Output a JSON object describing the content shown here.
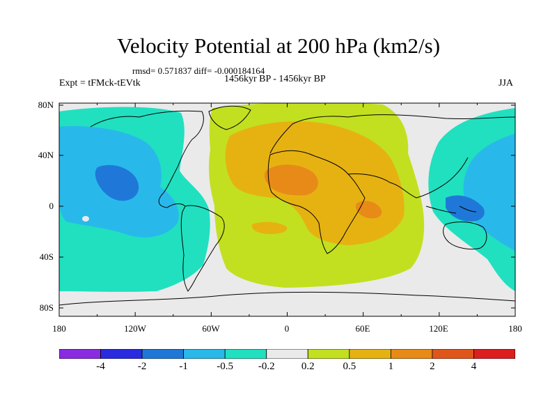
{
  "title": "Velocity Potential at 200 hPa (km2/s)",
  "stats_line": "rmsd= 0.571837 diff= -0.000184164",
  "period": "1456kyr BP - 1456kyr BP",
  "experiment": "Expt = tFMck-tEVtk",
  "season": "JJA",
  "lon_labels": [
    "180",
    "120W",
    "60W",
    "0",
    "60E",
    "120E",
    "180"
  ],
  "lat_labels": [
    "80N",
    "40N",
    "0",
    "40S",
    "80S"
  ],
  "colorbar": {
    "labels": [
      "-4",
      "-2",
      "-1",
      "-0.5",
      "-0.2",
      "0.2",
      "0.5",
      "1",
      "2",
      "4"
    ],
    "colors": [
      "#8a2be2",
      "#2a2ae0",
      "#1f78d8",
      "#28b9ea",
      "#20e0c0",
      "#eaeaea",
      "#c2e020",
      "#e6b212",
      "#e88a18",
      "#e0561a",
      "#dc1e1e"
    ]
  },
  "colors": {
    "neutral": "#eaeaea",
    "neg_weak": "#20e0c0",
    "neg_mod": "#28b9ea",
    "neg_strong": "#1f78d8",
    "pos_weak": "#c2e020",
    "pos_mod": "#e6b212",
    "pos_strong": "#e88a18",
    "coast": "#000000"
  }
}
